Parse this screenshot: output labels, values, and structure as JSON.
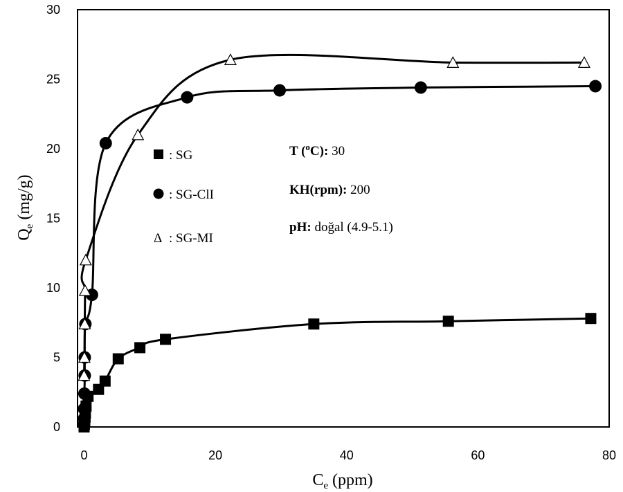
{
  "chart_data": {
    "type": "scatter",
    "title": "",
    "xlabel": {
      "main": "C",
      "sub": "e",
      "unit": " (ppm)"
    },
    "ylabel": {
      "main": "Q",
      "sub": "e",
      "unit": " (mg/g)"
    },
    "xlim": [
      -1,
      80
    ],
    "ylim": [
      0,
      30
    ],
    "xticks": [
      0,
      20,
      40,
      60,
      80
    ],
    "yticks": [
      0,
      5,
      10,
      15,
      20,
      25,
      30
    ],
    "grid": false,
    "legend_position": "center-left",
    "series": [
      {
        "name": ": SG",
        "marker": "square",
        "color": "#000000",
        "symbol": "■",
        "x": [
          0.0,
          0.05,
          0.1,
          0.15,
          0.2,
          0.3,
          0.6,
          2.2,
          3.2,
          5.2,
          8.5,
          12.4,
          35.0,
          55.5,
          77.2
        ],
        "y": [
          0.0,
          0.2,
          0.4,
          0.7,
          1.0,
          1.5,
          2.2,
          2.7,
          3.3,
          4.9,
          5.7,
          6.3,
          7.4,
          7.6,
          7.8
        ]
      },
      {
        "name": ": SG-ClI",
        "marker": "circle",
        "color": "#000000",
        "symbol": "●",
        "x": [
          0.0,
          0.0,
          0.0,
          0.05,
          0.1,
          0.1,
          0.2,
          1.2,
          3.3,
          15.7,
          29.8,
          51.3,
          77.9
        ],
        "y": [
          0.2,
          0.6,
          1.3,
          2.4,
          3.7,
          5.0,
          7.4,
          9.5,
          20.4,
          23.7,
          24.2,
          24.4,
          24.5
        ]
      },
      {
        "name": ": SG-MI",
        "marker": "triangle-open",
        "color": "#000000",
        "symbol": "Δ",
        "x": [
          0.0,
          0.05,
          0.1,
          0.15,
          0.25,
          8.2,
          22.3,
          56.2,
          76.2
        ],
        "y": [
          3.7,
          5.0,
          7.4,
          9.8,
          12.0,
          21.0,
          26.4,
          26.2,
          26.2
        ]
      }
    ],
    "annotations": [
      {
        "label": "T (",
        "sup": "o",
        "label_end": "C):",
        "value": " 30"
      },
      {
        "label": "KH(rpm):",
        "value": " 200"
      },
      {
        "label": "pH:",
        "value": " doğal (4.9-5.1)"
      }
    ]
  }
}
